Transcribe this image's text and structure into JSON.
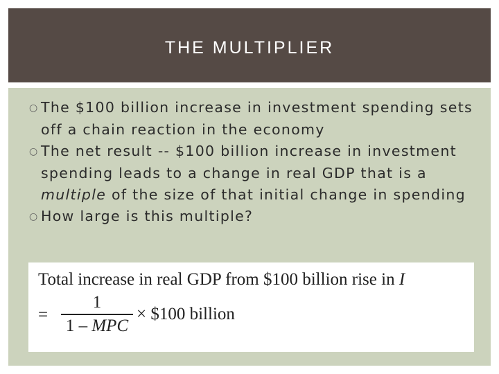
{
  "slide": {
    "title": "THE MULTIPLIER",
    "bullets": [
      {
        "text_before": "The $100 billion increase in investment spending sets off a chain reaction in the economy",
        "emphasis": "",
        "text_after": ""
      },
      {
        "text_before": "The net result -- $100 billion increase in investment spending leads to a change in real GDP that is a ",
        "emphasis": "multiple",
        "text_after": " of the size of that initial change in spending"
      },
      {
        "text_before": "How large is this multiple?",
        "emphasis": "",
        "text_after": ""
      }
    ],
    "formula": {
      "line1": "Total increase in real GDP from $100 billion rise in ",
      "line1_variable": "I",
      "equals": "=",
      "numerator": "1",
      "denominator_prefix": "1 – ",
      "denominator_variable": "MPC",
      "times": "×",
      "amount": "$100 billion"
    }
  },
  "colors": {
    "title_bar": "#554a45",
    "content_background": "#ccd3bd",
    "formula_background": "#ffffff",
    "title_text": "#ffffff",
    "body_text": "#2b2b2b"
  },
  "icons": {
    "bullet": "hollow-circle-bullet"
  }
}
